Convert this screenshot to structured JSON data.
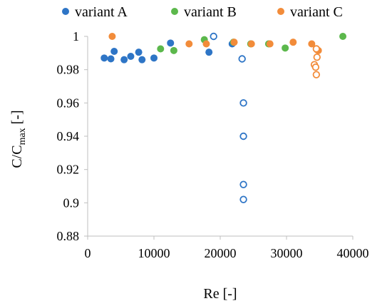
{
  "chart_data": {
    "type": "scatter",
    "xlabel": "Re [-]",
    "ylabel": {
      "base": "C/C",
      "subscript": "max",
      "suffix": " [-]"
    },
    "xlim": [
      0,
      40000
    ],
    "ylim": [
      0.88,
      1.0
    ],
    "x_ticks": [
      0,
      10000,
      20000,
      30000,
      40000
    ],
    "y_ticks": [
      0.88,
      0.9,
      0.92,
      0.94,
      0.96,
      0.98,
      1
    ],
    "grid": false,
    "legend_position": "top",
    "series": [
      {
        "name": "variant A",
        "color": "#2E75C6",
        "filled": [
          {
            "x": 2500,
            "y": 0.987
          },
          {
            "x": 3500,
            "y": 0.9865
          },
          {
            "x": 4000,
            "y": 0.991
          },
          {
            "x": 5500,
            "y": 0.986
          },
          {
            "x": 6500,
            "y": 0.988
          },
          {
            "x": 7700,
            "y": 0.9905
          },
          {
            "x": 8200,
            "y": 0.986
          },
          {
            "x": 10000,
            "y": 0.987
          },
          {
            "x": 12500,
            "y": 0.996
          },
          {
            "x": 18300,
            "y": 0.9905
          },
          {
            "x": 21800,
            "y": 0.9955
          }
        ],
        "hollow": [
          {
            "x": 19000,
            "y": 1.0
          },
          {
            "x": 23300,
            "y": 0.9865
          },
          {
            "x": 23500,
            "y": 0.96
          },
          {
            "x": 23500,
            "y": 0.94
          },
          {
            "x": 23500,
            "y": 0.911
          },
          {
            "x": 23500,
            "y": 0.902
          }
        ]
      },
      {
        "name": "variant B",
        "color": "#5CB84C",
        "filled": [
          {
            "x": 11000,
            "y": 0.9925
          },
          {
            "x": 13000,
            "y": 0.9915
          },
          {
            "x": 17600,
            "y": 0.998
          },
          {
            "x": 22000,
            "y": 0.9965
          },
          {
            "x": 24600,
            "y": 0.9955
          },
          {
            "x": 27300,
            "y": 0.9955
          },
          {
            "x": 29800,
            "y": 0.993
          },
          {
            "x": 38500,
            "y": 1.0
          }
        ],
        "hollow": []
      },
      {
        "name": "variant C",
        "color": "#F28C3A",
        "filled": [
          {
            "x": 3700,
            "y": 1.0
          },
          {
            "x": 15300,
            "y": 0.9955
          },
          {
            "x": 17900,
            "y": 0.9955
          },
          {
            "x": 22100,
            "y": 0.9965
          },
          {
            "x": 24700,
            "y": 0.9955
          },
          {
            "x": 27500,
            "y": 0.9955
          },
          {
            "x": 31000,
            "y": 0.9965
          },
          {
            "x": 33800,
            "y": 0.9955
          },
          {
            "x": 34600,
            "y": 0.992
          },
          {
            "x": 34800,
            "y": 0.9915
          }
        ],
        "hollow": [
          {
            "x": 34500,
            "y": 0.9925
          },
          {
            "x": 34600,
            "y": 0.9875
          },
          {
            "x": 34200,
            "y": 0.983
          },
          {
            "x": 34400,
            "y": 0.9815
          },
          {
            "x": 34500,
            "y": 0.977
          }
        ]
      }
    ]
  }
}
